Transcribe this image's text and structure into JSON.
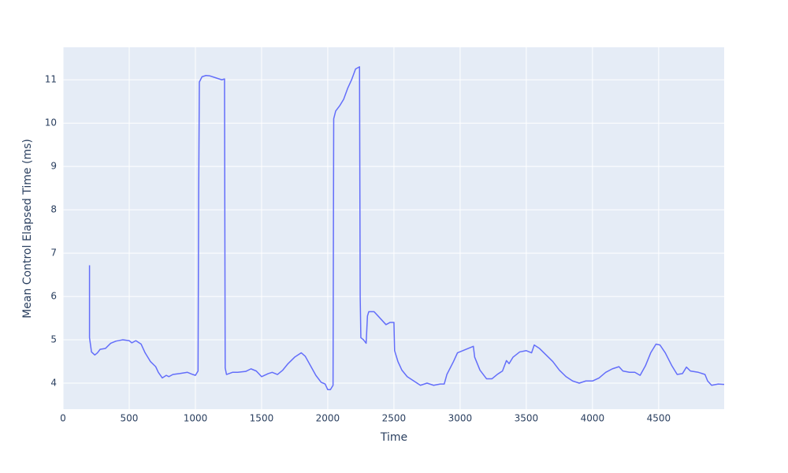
{
  "chart_data": {
    "type": "line",
    "x_label": "Time",
    "y_label": "Mean Control Elapsed Time (ms)",
    "color": "#636efa",
    "grid": true,
    "xlim": [
      0,
      4995
    ],
    "ylim": [
      3.4,
      11.75
    ],
    "xticks": [
      0,
      500,
      1000,
      1500,
      2000,
      2500,
      3000,
      3500,
      4000,
      4500
    ],
    "yticks": [
      4,
      5,
      6,
      7,
      8,
      9,
      10,
      11
    ],
    "x": [
      200,
      200,
      215,
      240,
      260,
      280,
      320,
      360,
      400,
      450,
      500,
      520,
      550,
      590,
      620,
      660,
      700,
      720,
      750,
      780,
      800,
      830,
      880,
      940,
      980,
      1000,
      1020,
      1025,
      1030,
      1050,
      1080,
      1110,
      1150,
      1200,
      1220,
      1225,
      1235,
      1280,
      1320,
      1380,
      1420,
      1460,
      1500,
      1550,
      1580,
      1620,
      1660,
      1700,
      1750,
      1800,
      1830,
      1870,
      1910,
      1950,
      1980,
      2000,
      2020,
      2040,
      2045,
      2060,
      2090,
      2120,
      2150,
      2180,
      2210,
      2240,
      2245,
      2250,
      2270,
      2290,
      2300,
      2310,
      2350,
      2380,
      2410,
      2440,
      2470,
      2500,
      2505,
      2530,
      2560,
      2600,
      2650,
      2700,
      2750,
      2800,
      2850,
      2880,
      2900,
      2950,
      2980,
      3020,
      3060,
      3100,
      3110,
      3150,
      3200,
      3240,
      3280,
      3320,
      3350,
      3370,
      3400,
      3450,
      3500,
      3540,
      3560,
      3600,
      3650,
      3700,
      3750,
      3800,
      3850,
      3900,
      3950,
      4000,
      4050,
      4100,
      4150,
      4200,
      4230,
      4280,
      4320,
      4360,
      4400,
      4440,
      4480,
      4510,
      4550,
      4600,
      4640,
      4680,
      4710,
      4740,
      4800,
      4850,
      4870,
      4900,
      4950,
      4995
    ],
    "values": [
      6.72,
      5.05,
      4.72,
      4.65,
      4.7,
      4.78,
      4.8,
      4.92,
      4.97,
      5.0,
      4.98,
      4.93,
      4.98,
      4.9,
      4.7,
      4.5,
      4.38,
      4.25,
      4.12,
      4.18,
      4.15,
      4.2,
      4.22,
      4.25,
      4.2,
      4.18,
      4.28,
      8.5,
      10.95,
      11.07,
      11.1,
      11.09,
      11.05,
      11.0,
      11.02,
      4.35,
      4.2,
      4.25,
      4.25,
      4.27,
      4.33,
      4.28,
      4.15,
      4.22,
      4.25,
      4.2,
      4.3,
      4.45,
      4.6,
      4.7,
      4.62,
      4.4,
      4.18,
      4.02,
      3.98,
      3.85,
      3.85,
      3.95,
      10.1,
      10.28,
      10.4,
      10.55,
      10.8,
      11.0,
      11.25,
      11.3,
      6.0,
      5.05,
      5.0,
      4.92,
      5.55,
      5.65,
      5.65,
      5.55,
      5.45,
      5.35,
      5.4,
      5.4,
      4.75,
      4.5,
      4.3,
      4.15,
      4.05,
      3.95,
      4.0,
      3.95,
      3.98,
      3.98,
      4.2,
      4.5,
      4.7,
      4.75,
      4.8,
      4.85,
      4.6,
      4.3,
      4.1,
      4.1,
      4.2,
      4.28,
      4.52,
      4.45,
      4.6,
      4.72,
      4.75,
      4.7,
      4.88,
      4.8,
      4.65,
      4.5,
      4.3,
      4.15,
      4.05,
      4.0,
      4.05,
      4.05,
      4.12,
      4.25,
      4.33,
      4.38,
      4.28,
      4.25,
      4.25,
      4.18,
      4.4,
      4.7,
      4.9,
      4.88,
      4.7,
      4.4,
      4.2,
      4.22,
      4.37,
      4.28,
      4.25,
      4.2,
      4.05,
      3.95,
      3.98,
      3.97
    ]
  }
}
